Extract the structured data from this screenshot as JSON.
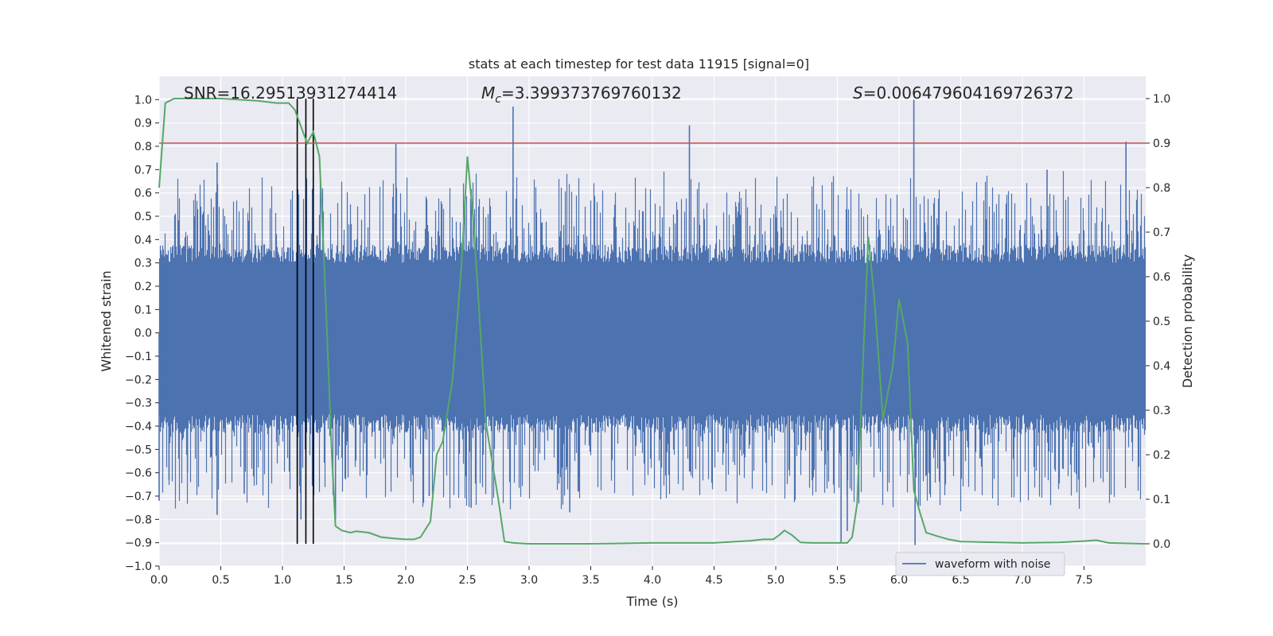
{
  "chart_data": {
    "type": "line",
    "title": "stats at each timestep for test data 11915 [signal=0]",
    "xlabel": "Time (s)",
    "ylabel": "Whitened strain",
    "y2label": "Detection probability",
    "xlim": [
      0,
      8
    ],
    "ylim": [
      -1.0,
      1.1
    ],
    "y2lim": [
      -0.05,
      1.05
    ],
    "x_ticks": [
      "0.0",
      "0.5",
      "1.0",
      "1.5",
      "2.0",
      "2.5",
      "3.0",
      "3.5",
      "4.0",
      "4.5",
      "5.0",
      "5.5",
      "6.0",
      "6.5",
      "7.0",
      "7.5"
    ],
    "y_ticks": [
      "-1.0",
      "-0.9",
      "-0.8",
      "-0.7",
      "-0.6",
      "-0.5",
      "-0.4",
      "-0.3",
      "-0.2",
      "-0.1",
      "0.0",
      "0.1",
      "0.2",
      "0.3",
      "0.4",
      "0.5",
      "0.6",
      "0.7",
      "0.8",
      "0.9",
      "1.0"
    ],
    "y2_ticks": [
      "0.0",
      "0.1",
      "0.2",
      "0.3",
      "0.4",
      "0.5",
      "0.6",
      "0.7",
      "0.8",
      "0.9",
      "1.0"
    ],
    "grid": true,
    "annotations": {
      "snr": "SNR=16.29513931274414",
      "mc_symbol": "M",
      "mc_sub": "c",
      "mc_value": "=3.399373769760132",
      "s_symbol": "S",
      "s_value": "=0.006479604169726372"
    },
    "legend": {
      "placement": "lower-right",
      "entries": [
        "waveform with noise"
      ]
    },
    "threshold": {
      "axis": "right",
      "value": 0.9
    },
    "vertical_lines": [
      1.12,
      1.19,
      1.25
    ],
    "waveform": {
      "name": "waveform with noise",
      "color": "#4c72b0",
      "spikes": [
        {
          "x": 0.0,
          "y": -0.72
        },
        {
          "x": 0.08,
          "y": -0.63
        },
        {
          "x": 0.23,
          "y": -0.6
        },
        {
          "x": 0.47,
          "y": 0.73
        },
        {
          "x": 0.47,
          "y": -0.78
        },
        {
          "x": 0.69,
          "y": -0.69
        },
        {
          "x": 1.15,
          "y": -0.8
        },
        {
          "x": 1.43,
          "y": -0.8
        },
        {
          "x": 1.92,
          "y": 0.81
        },
        {
          "x": 2.19,
          "y": -0.7
        },
        {
          "x": 2.53,
          "y": -0.75
        },
        {
          "x": 2.87,
          "y": 0.97
        },
        {
          "x": 3.33,
          "y": -0.77
        },
        {
          "x": 4.3,
          "y": 0.89
        },
        {
          "x": 5.53,
          "y": -0.9
        },
        {
          "x": 5.58,
          "y": -0.85
        },
        {
          "x": 6.12,
          "y": 1.0
        },
        {
          "x": 6.13,
          "y": -0.91
        },
        {
          "x": 7.2,
          "y": 0.7
        },
        {
          "x": 7.84,
          "y": 0.82
        }
      ]
    },
    "probability": {
      "color": "#55a868",
      "x": [
        0.0,
        0.05,
        0.12,
        0.5,
        0.8,
        0.95,
        1.0,
        1.05,
        1.1,
        1.2,
        1.25,
        1.3,
        1.35,
        1.4,
        1.43,
        1.48,
        1.55,
        1.6,
        1.7,
        1.8,
        1.9,
        2.0,
        2.07,
        2.12,
        2.2,
        2.25,
        2.3,
        2.38,
        2.45,
        2.5,
        2.55,
        2.6,
        2.65,
        2.75,
        2.8,
        2.87,
        3.0,
        3.5,
        4.0,
        4.5,
        4.8,
        4.9,
        4.98,
        5.03,
        5.07,
        5.13,
        5.2,
        5.3,
        5.5,
        5.58,
        5.62,
        5.66,
        5.75,
        5.8,
        5.87,
        5.95,
        6.0,
        6.07,
        6.12,
        6.17,
        6.22,
        6.3,
        6.4,
        6.5,
        7.0,
        7.3,
        7.5,
        7.6,
        7.7,
        8.0
      ],
      "y": [
        0.8,
        0.99,
        1.0,
        1.0,
        0.995,
        0.99,
        0.99,
        0.99,
        0.975,
        0.9,
        0.925,
        0.87,
        0.55,
        0.2,
        0.04,
        0.03,
        0.025,
        0.028,
        0.025,
        0.015,
        0.012,
        0.01,
        0.01,
        0.015,
        0.05,
        0.2,
        0.23,
        0.37,
        0.62,
        0.87,
        0.72,
        0.5,
        0.27,
        0.1,
        0.005,
        0.002,
        0.0,
        0.0,
        0.002,
        0.002,
        0.007,
        0.01,
        0.01,
        0.02,
        0.03,
        0.02,
        0.003,
        0.002,
        0.002,
        0.002,
        0.015,
        0.09,
        0.69,
        0.55,
        0.28,
        0.4,
        0.55,
        0.45,
        0.12,
        0.07,
        0.025,
        0.018,
        0.01,
        0.005,
        0.002,
        0.003,
        0.006,
        0.008,
        0.002,
        0.0
      ]
    },
    "threshold_color": "#c44e52"
  }
}
